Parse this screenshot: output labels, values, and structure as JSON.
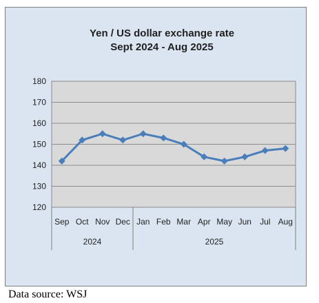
{
  "chart_data": {
    "type": "line",
    "title": "Yen / US dollar exchange rate",
    "subtitle": "Sept 2024 - Aug 2025",
    "categories": [
      "Sep",
      "Oct",
      "Nov",
      "Dec",
      "Jan",
      "Feb",
      "Mar",
      "Apr",
      "May",
      "Jun",
      "Jul",
      "Aug"
    ],
    "groups": [
      {
        "label": "2024",
        "count": 4
      },
      {
        "label": "2025",
        "count": 8
      }
    ],
    "series": [
      {
        "values": [
          142,
          152,
          155,
          152,
          155,
          153,
          150,
          144,
          142,
          144,
          147,
          148
        ]
      }
    ],
    "ylim": [
      120,
      180
    ],
    "yticks": [
      "120",
      "130",
      "140",
      "150",
      "160",
      "170",
      "180"
    ],
    "grid": true,
    "legend": "none",
    "colors": {
      "line": "#4a7ebb",
      "plot_bg": "#d9d9d9",
      "chart_bg": "#dbe5f1",
      "gridline": "#8c8c8c"
    }
  },
  "footer": {
    "source": "Data source: WSJ"
  }
}
